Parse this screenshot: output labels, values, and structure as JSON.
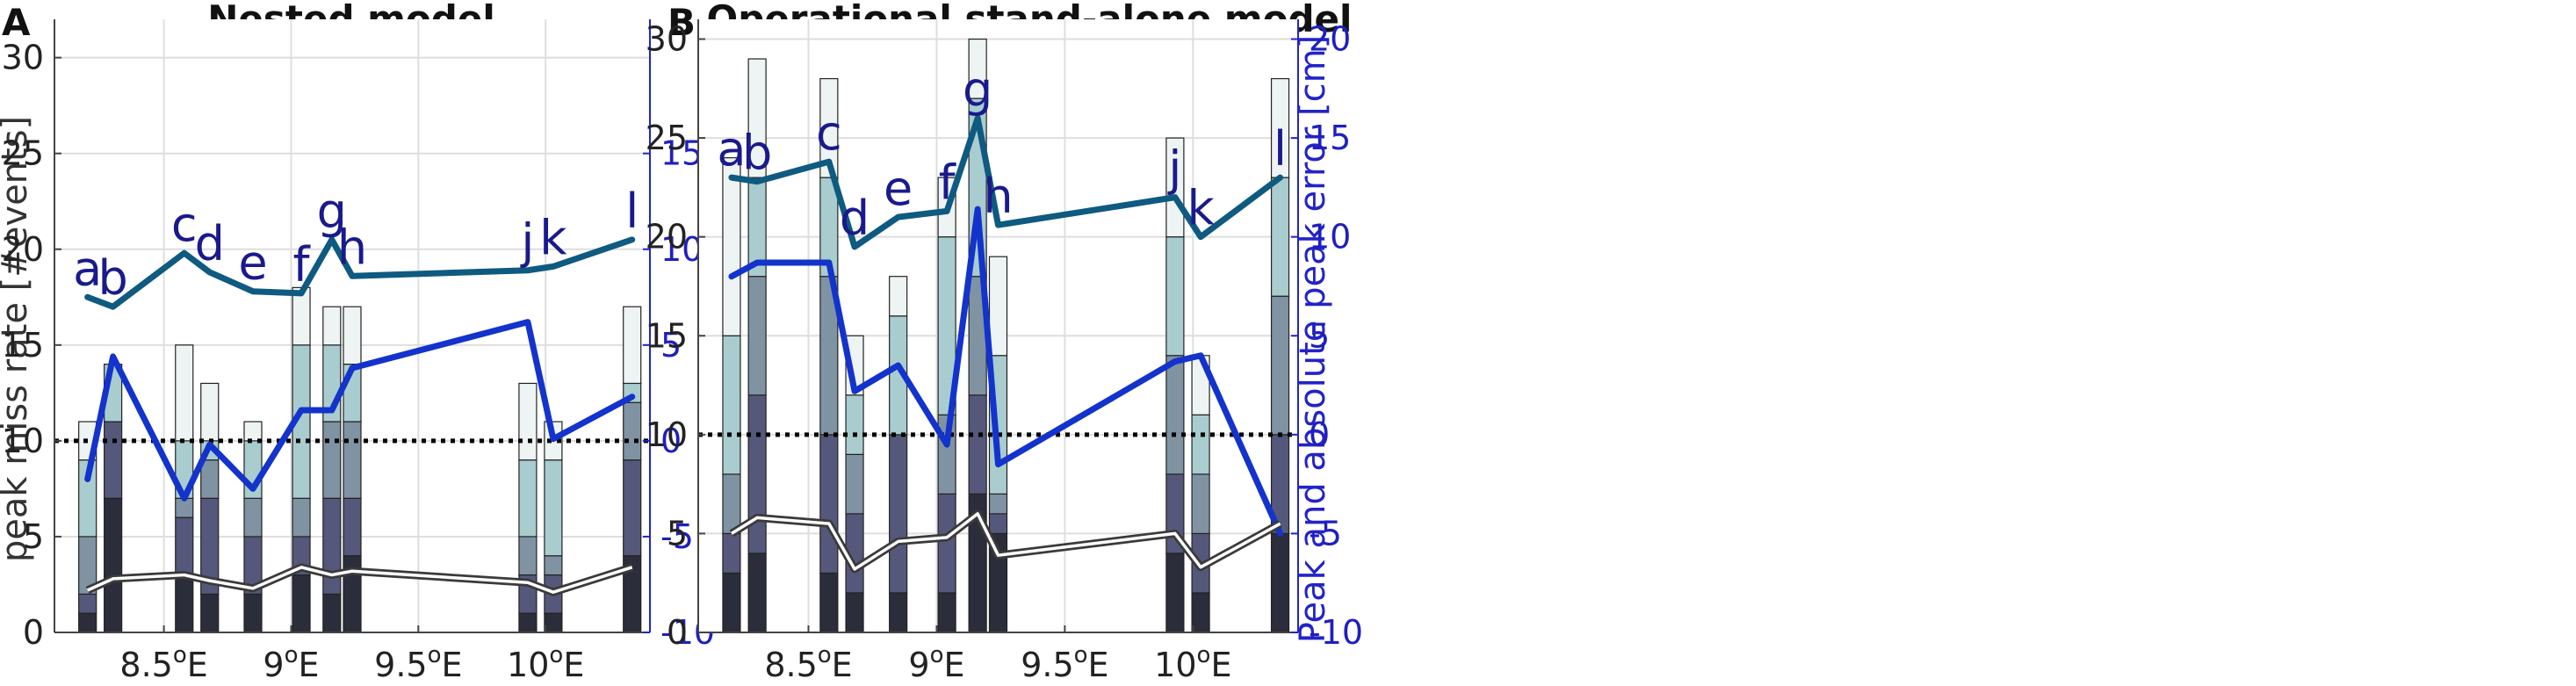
{
  "chart_data": [
    {
      "panel_label": "A",
      "title": "Nested model",
      "type": "bar",
      "ylabel": "peak miss rate [#events]",
      "ylabel2": "",
      "ylim": [
        0,
        32
      ],
      "y2lim": [
        -10,
        22
      ],
      "xlim": [
        8.07,
        10.41
      ],
      "yticks": [
        0,
        5,
        10,
        15,
        20,
        25,
        30
      ],
      "y2ticks": [
        -10,
        -5,
        0,
        5,
        10,
        15
      ],
      "xticks": [
        {
          "value": 8.5,
          "label": "8.5°E"
        },
        {
          "value": 9.0,
          "label": "9°E"
        },
        {
          "value": 9.5,
          "label": "9.5°E"
        },
        {
          "value": 10.0,
          "label": "10°E"
        }
      ],
      "reference_line": 10,
      "stations": [
        {
          "label": "a",
          "lon": 8.2,
          "levels": [
            1,
            2,
            5,
            9,
            11
          ]
        },
        {
          "label": "b",
          "lon": 8.3,
          "levels": [
            7,
            11,
            11,
            14,
            14
          ]
        },
        {
          "label": "c",
          "lon": 8.58,
          "levels": [
            3,
            6,
            7,
            10,
            15
          ]
        },
        {
          "label": "d",
          "lon": 8.68,
          "levels": [
            2,
            7,
            9,
            10,
            13
          ]
        },
        {
          "label": "e",
          "lon": 8.85,
          "levels": [
            2,
            5,
            7,
            10,
            11
          ]
        },
        {
          "label": "f",
          "lon": 9.04,
          "levels": [
            3,
            5,
            7,
            15,
            18
          ]
        },
        {
          "label": "g",
          "lon": 9.16,
          "levels": [
            2,
            7,
            11,
            15,
            17
          ]
        },
        {
          "label": "h",
          "lon": 9.24,
          "levels": [
            4,
            7,
            11,
            14,
            17
          ]
        },
        {
          "label": "j",
          "lon": 9.93,
          "levels": [
            1,
            3,
            5,
            9,
            13
          ]
        },
        {
          "label": "k",
          "lon": 10.03,
          "levels": [
            1,
            3,
            4,
            9,
            11
          ]
        },
        {
          "label": "l",
          "lon": 10.34,
          "levels": [
            4,
            9,
            12,
            13,
            17
          ]
        }
      ],
      "series": [
        {
          "name": "upper teal line (right axis)",
          "axis": "right",
          "values": [
            7.5,
            7.0,
            9.8,
            8.8,
            7.8,
            7.7,
            10.5,
            8.6,
            8.9,
            9.1,
            10.5
          ]
        },
        {
          "name": "blue line (right axis)",
          "axis": "right",
          "values": [
            -2.0,
            4.4,
            -3.0,
            -0.2,
            -2.5,
            1.6,
            1.6,
            3.8,
            6.2,
            0.1,
            2.3
          ]
        },
        {
          "name": "grey line (left axis)",
          "axis": "left",
          "values": [
            2.2,
            2.8,
            3.0,
            2.7,
            2.3,
            3.4,
            3.0,
            3.2,
            2.6,
            2.1,
            3.4
          ]
        }
      ]
    },
    {
      "panel_label": "B",
      "title": "Operational stand-alone model",
      "type": "bar",
      "ylabel": "",
      "ylabel2": "Peak and absolute peak error [cm]",
      "ylim": [
        0,
        31
      ],
      "y2lim": [
        -10,
        21
      ],
      "xlim": [
        8.07,
        10.41
      ],
      "yticks": [
        0,
        5,
        10,
        15,
        20,
        25,
        30
      ],
      "y2ticks": [
        -10,
        -5,
        0,
        5,
        10,
        15,
        20
      ],
      "xticks": [
        {
          "value": 8.5,
          "label": "8.5°E"
        },
        {
          "value": 9.0,
          "label": "9°E"
        },
        {
          "value": 9.5,
          "label": "9.5°E"
        },
        {
          "value": 10.0,
          "label": "10°E"
        }
      ],
      "reference_line": 10,
      "stations": [
        {
          "label": "a",
          "lon": 8.2,
          "levels": [
            3,
            5,
            8,
            15,
            24
          ]
        },
        {
          "label": "b",
          "lon": 8.3,
          "levels": [
            4,
            12,
            18,
            23,
            29
          ]
        },
        {
          "label": "c",
          "lon": 8.58,
          "levels": [
            3,
            10,
            18,
            23,
            28
          ]
        },
        {
          "label": "d",
          "lon": 8.68,
          "levels": [
            2,
            6,
            9,
            12,
            15
          ]
        },
        {
          "label": "e",
          "lon": 8.85,
          "levels": [
            2,
            10,
            10,
            16,
            18
          ]
        },
        {
          "label": "f",
          "lon": 9.04,
          "levels": [
            2,
            7,
            11,
            20,
            23
          ]
        },
        {
          "label": "g",
          "lon": 9.16,
          "levels": [
            7,
            12,
            18,
            27,
            30
          ]
        },
        {
          "label": "h",
          "lon": 9.24,
          "levels": [
            5,
            6,
            7,
            14,
            19
          ]
        },
        {
          "label": "j",
          "lon": 9.93,
          "levels": [
            4,
            8,
            14,
            20,
            25
          ]
        },
        {
          "label": "k",
          "lon": 10.03,
          "levels": [
            2,
            5,
            8,
            11,
            14
          ]
        },
        {
          "label": "l",
          "lon": 10.34,
          "levels": [
            5,
            10,
            17,
            23,
            28
          ]
        }
      ],
      "series": [
        {
          "name": "upper teal line (right axis)",
          "axis": "right",
          "values": [
            13.0,
            12.8,
            13.8,
            9.5,
            11.0,
            11.3,
            16.0,
            10.6,
            12.0,
            10.0,
            13.0
          ]
        },
        {
          "name": "blue line (right axis)",
          "axis": "right",
          "values": [
            8.0,
            8.7,
            8.7,
            2.2,
            3.5,
            -0.5,
            11.4,
            -1.5,
            3.7,
            4.0,
            -5.0
          ]
        },
        {
          "name": "grey line (left axis)",
          "axis": "left",
          "values": [
            5.0,
            5.8,
            5.5,
            3.2,
            4.6,
            4.8,
            6.0,
            3.9,
            5.0,
            3.3,
            5.5
          ]
        }
      ]
    }
  ],
  "colors": {
    "bar_segments": [
      "#2b2d3b",
      "#55587a",
      "#7f93a3",
      "#a9cccf",
      "#eef4f4"
    ],
    "teal_line": "#0e5a80",
    "blue_line": "#1333cc",
    "grey_line": "#3a3a3a",
    "right_axis": "#2323c8",
    "grid": "#dedede"
  }
}
